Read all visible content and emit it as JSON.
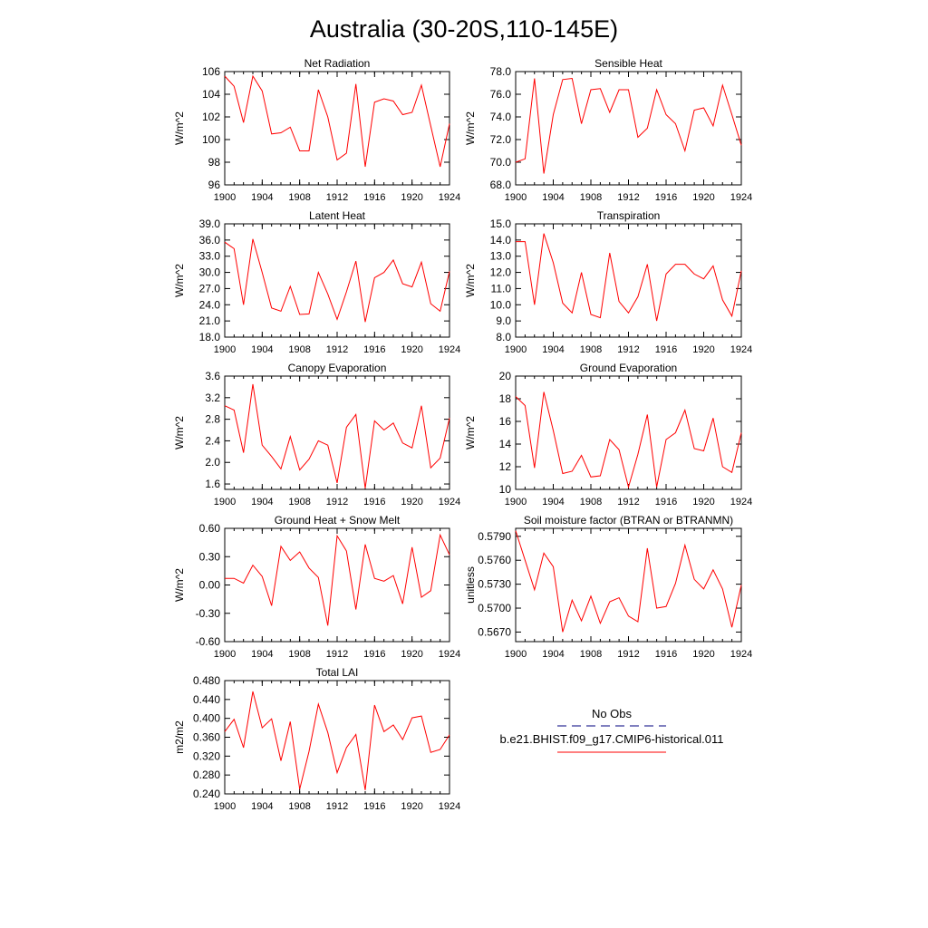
{
  "title": "Australia (30-20S,110-145E)",
  "chart_data": [
    {
      "type": "line",
      "title": "Net Radiation",
      "ylabel": "W/m^2",
      "xlim": [
        1900,
        1924
      ],
      "ylim": [
        96,
        106
      ],
      "x_ticks": [
        "1900",
        "1904",
        "1908",
        "1912",
        "1916",
        "1920",
        "1924"
      ],
      "y_ticks": [
        "96",
        "98",
        "100",
        "102",
        "104",
        "106"
      ],
      "x": [
        1900,
        1901,
        1902,
        1903,
        1904,
        1905,
        1906,
        1907,
        1908,
        1909,
        1910,
        1911,
        1912,
        1913,
        1914,
        1915,
        1916,
        1917,
        1918,
        1919,
        1920,
        1921,
        1922,
        1923,
        1924
      ],
      "series": [
        {
          "color": "#ff0000",
          "values": [
            105.6,
            104.7,
            101.5,
            105.6,
            104.3,
            100.5,
            100.6,
            101.1,
            99.0,
            99.0,
            104.4,
            102.0,
            98.2,
            98.8,
            104.9,
            97.6,
            103.3,
            103.6,
            103.4,
            102.2,
            102.4,
            104.8,
            101.2,
            97.6,
            101.4
          ]
        }
      ]
    },
    {
      "type": "line",
      "title": "Sensible Heat",
      "ylabel": "W/m^2",
      "xlim": [
        1900,
        1924
      ],
      "ylim": [
        68,
        78
      ],
      "x_ticks": [
        "1900",
        "1904",
        "1908",
        "1912",
        "1916",
        "1920",
        "1924"
      ],
      "y_ticks": [
        "68.0",
        "70.0",
        "72.0",
        "74.0",
        "76.0",
        "78.0"
      ],
      "x": [
        1900,
        1901,
        1902,
        1903,
        1904,
        1905,
        1906,
        1907,
        1908,
        1909,
        1910,
        1911,
        1912,
        1913,
        1914,
        1915,
        1916,
        1917,
        1918,
        1919,
        1920,
        1921,
        1922,
        1923,
        1924
      ],
      "series": [
        {
          "color": "#ff0000",
          "values": [
            70.0,
            70.3,
            77.4,
            69.0,
            74.2,
            77.3,
            77.4,
            73.4,
            76.4,
            76.5,
            74.4,
            76.4,
            76.4,
            72.2,
            73.0,
            76.4,
            74.2,
            73.4,
            71.0,
            74.6,
            74.8,
            73.2,
            76.8,
            74.2,
            71.5
          ]
        }
      ]
    },
    {
      "type": "line",
      "title": "Latent Heat",
      "ylabel": "W/m^2",
      "xlim": [
        1900,
        1924
      ],
      "ylim": [
        18,
        39
      ],
      "x_ticks": [
        "1900",
        "1904",
        "1908",
        "1912",
        "1916",
        "1920",
        "1924"
      ],
      "y_ticks": [
        "18.0",
        "21.0",
        "24.0",
        "27.0",
        "30.0",
        "33.0",
        "36.0",
        "39.0"
      ],
      "x": [
        1900,
        1901,
        1902,
        1903,
        1904,
        1905,
        1906,
        1907,
        1908,
        1909,
        1910,
        1911,
        1912,
        1913,
        1914,
        1915,
        1916,
        1917,
        1918,
        1919,
        1920,
        1921,
        1922,
        1923,
        1924
      ],
      "series": [
        {
          "color": "#ff0000",
          "values": [
            35.6,
            34.4,
            24.0,
            36.2,
            30.0,
            23.4,
            22.8,
            27.4,
            22.2,
            22.3,
            30.0,
            26.0,
            21.3,
            26.4,
            32.1,
            20.8,
            29.0,
            30.0,
            32.3,
            27.9,
            27.3,
            31.9,
            24.2,
            22.8,
            30.2
          ]
        }
      ]
    },
    {
      "type": "line",
      "title": "Transpiration",
      "ylabel": "W/m^2",
      "xlim": [
        1900,
        1924
      ],
      "ylim": [
        8,
        15
      ],
      "x_ticks": [
        "1900",
        "1904",
        "1908",
        "1912",
        "1916",
        "1920",
        "1924"
      ],
      "y_ticks": [
        "8.0",
        "9.0",
        "10.0",
        "11.0",
        "12.0",
        "13.0",
        "14.0",
        "15.0"
      ],
      "x": [
        1900,
        1901,
        1902,
        1903,
        1904,
        1905,
        1906,
        1907,
        1908,
        1909,
        1910,
        1911,
        1912,
        1913,
        1914,
        1915,
        1916,
        1917,
        1918,
        1919,
        1920,
        1921,
        1922,
        1923,
        1924
      ],
      "series": [
        {
          "color": "#ff0000",
          "values": [
            13.9,
            13.9,
            10.0,
            14.4,
            12.6,
            10.1,
            9.5,
            12.0,
            9.4,
            9.2,
            13.2,
            10.2,
            9.5,
            10.5,
            12.5,
            9.0,
            11.9,
            12.5,
            12.5,
            11.9,
            11.6,
            12.4,
            10.3,
            9.3,
            12.1
          ]
        }
      ]
    },
    {
      "type": "line",
      "title": "Canopy Evaporation",
      "ylabel": "W/m^2",
      "xlim": [
        1900,
        1924
      ],
      "ylim": [
        1.5,
        3.6
      ],
      "x_ticks": [
        "1900",
        "1904",
        "1908",
        "1912",
        "1916",
        "1920",
        "1924"
      ],
      "y_ticks": [
        "1.6",
        "2.0",
        "2.4",
        "2.8",
        "3.2",
        "3.6"
      ],
      "x": [
        1900,
        1901,
        1902,
        1903,
        1904,
        1905,
        1906,
        1907,
        1908,
        1909,
        1910,
        1911,
        1912,
        1913,
        1914,
        1915,
        1916,
        1917,
        1918,
        1919,
        1920,
        1921,
        1922,
        1923,
        1924
      ],
      "series": [
        {
          "color": "#ff0000",
          "values": [
            3.05,
            2.97,
            2.18,
            3.45,
            2.32,
            2.11,
            1.88,
            2.48,
            1.86,
            2.06,
            2.4,
            2.32,
            1.62,
            2.65,
            2.89,
            1.52,
            2.77,
            2.6,
            2.73,
            2.36,
            2.27,
            3.05,
            1.9,
            2.08,
            2.82
          ]
        }
      ]
    },
    {
      "type": "line",
      "title": "Ground Evaporation",
      "ylabel": "W/m^2",
      "xlim": [
        1900,
        1924
      ],
      "ylim": [
        10,
        20
      ],
      "x_ticks": [
        "1900",
        "1904",
        "1908",
        "1912",
        "1916",
        "1920",
        "1924"
      ],
      "y_ticks": [
        "10",
        "12",
        "14",
        "16",
        "18",
        "20"
      ],
      "x": [
        1900,
        1901,
        1902,
        1903,
        1904,
        1905,
        1906,
        1907,
        1908,
        1909,
        1910,
        1911,
        1912,
        1913,
        1914,
        1915,
        1916,
        1917,
        1918,
        1919,
        1920,
        1921,
        1922,
        1923,
        1924
      ],
      "series": [
        {
          "color": "#ff0000",
          "values": [
            18.2,
            17.4,
            11.9,
            18.6,
            15.2,
            11.4,
            11.6,
            13.0,
            11.1,
            11.2,
            14.4,
            13.5,
            10.2,
            13.1,
            16.6,
            10.2,
            14.4,
            15.0,
            17.0,
            13.6,
            13.4,
            16.3,
            12.0,
            11.5,
            15.0
          ]
        }
      ]
    },
    {
      "type": "line",
      "title": "Ground Heat + Snow Melt",
      "ylabel": "W/m^2",
      "xlim": [
        1900,
        1924
      ],
      "ylim": [
        -0.6,
        0.6
      ],
      "x_ticks": [
        "1900",
        "1904",
        "1908",
        "1912",
        "1916",
        "1920",
        "1924"
      ],
      "y_ticks": [
        "-0.60",
        "-0.30",
        "0.00",
        "0.30",
        "0.60"
      ],
      "x": [
        1900,
        1901,
        1902,
        1903,
        1904,
        1905,
        1906,
        1907,
        1908,
        1909,
        1910,
        1911,
        1912,
        1913,
        1914,
        1915,
        1916,
        1917,
        1918,
        1919,
        1920,
        1921,
        1922,
        1923,
        1924
      ],
      "series": [
        {
          "color": "#ff0000",
          "values": [
            0.07,
            0.07,
            0.02,
            0.21,
            0.09,
            -0.22,
            0.41,
            0.26,
            0.35,
            0.18,
            0.08,
            -0.43,
            0.52,
            0.36,
            -0.26,
            0.43,
            0.07,
            0.04,
            0.1,
            -0.2,
            0.4,
            -0.13,
            -0.06,
            0.53,
            0.32
          ]
        }
      ]
    },
    {
      "type": "line",
      "title": "Soil moisture factor (BTRAN or BTRANMN)",
      "ylabel": "unitless",
      "xlim": [
        1900,
        1924
      ],
      "ylim": [
        0.5658,
        0.58
      ],
      "x_ticks": [
        "1900",
        "1904",
        "1908",
        "1912",
        "1916",
        "1920",
        "1924"
      ],
      "y_ticks": [
        "0.5670",
        "0.5700",
        "0.5730",
        "0.5760",
        "0.5790"
      ],
      "x": [
        1900,
        1901,
        1902,
        1903,
        1904,
        1905,
        1906,
        1907,
        1908,
        1909,
        1910,
        1911,
        1912,
        1913,
        1914,
        1915,
        1916,
        1917,
        1918,
        1919,
        1920,
        1921,
        1922,
        1923,
        1924
      ],
      "series": [
        {
          "color": "#ff0000",
          "values": [
            0.5797,
            0.576,
            0.5723,
            0.5769,
            0.5752,
            0.567,
            0.571,
            0.5684,
            0.5715,
            0.5681,
            0.5708,
            0.5713,
            0.569,
            0.5683,
            0.5775,
            0.57,
            0.5702,
            0.5731,
            0.5779,
            0.5736,
            0.5724,
            0.5748,
            0.5724,
            0.5676,
            0.5729
          ]
        }
      ]
    },
    {
      "type": "line",
      "title": "Total LAI",
      "ylabel": "m2/m2",
      "xlim": [
        1900,
        1924
      ],
      "ylim": [
        0.24,
        0.48
      ],
      "x_ticks": [
        "1900",
        "1904",
        "1908",
        "1912",
        "1916",
        "1920",
        "1924"
      ],
      "y_ticks": [
        "0.240",
        "0.280",
        "0.320",
        "0.360",
        "0.400",
        "0.440",
        "0.480"
      ],
      "x": [
        1900,
        1901,
        1902,
        1903,
        1904,
        1905,
        1906,
        1907,
        1908,
        1909,
        1910,
        1911,
        1912,
        1913,
        1914,
        1915,
        1916,
        1917,
        1918,
        1919,
        1920,
        1921,
        1922,
        1923,
        1924
      ],
      "series": [
        {
          "color": "#ff0000",
          "values": [
            0.372,
            0.398,
            0.338,
            0.457,
            0.38,
            0.399,
            0.31,
            0.393,
            0.25,
            0.33,
            0.43,
            0.37,
            0.285,
            0.338,
            0.366,
            0.248,
            0.428,
            0.372,
            0.386,
            0.355,
            0.401,
            0.405,
            0.328,
            0.334,
            0.365
          ]
        }
      ]
    }
  ],
  "legend": {
    "items": [
      {
        "label": "No Obs",
        "color": "#00007f",
        "dash": true
      },
      {
        "label": "b.e21.BHIST.f09_g17.CMIP6-historical.011",
        "color": "#ff0000",
        "dash": false
      }
    ]
  }
}
